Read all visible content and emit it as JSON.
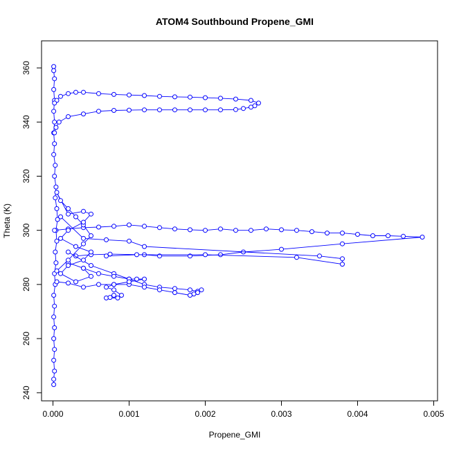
{
  "chart_data": {
    "type": "scatter",
    "title": "ATOM4 Southbound Propene_GMI",
    "xlabel": "Propene_GMI",
    "ylabel": "Theta (K)",
    "xlim": [
      -0.00015,
      0.00505
    ],
    "ylim": [
      237,
      370
    ],
    "x_ticks": [
      0,
      0.001,
      0.002,
      0.003,
      0.004,
      0.005
    ],
    "x_tick_labels": [
      "0.000",
      "0.001",
      "0.002",
      "0.003",
      "0.004",
      "0.005"
    ],
    "y_ticks": [
      240,
      260,
      280,
      300,
      320,
      340,
      360
    ],
    "y_tick_labels": [
      "240",
      "260",
      "280",
      "300",
      "320",
      "340",
      "360"
    ],
    "grid": false,
    "legend": "none",
    "marker": "open-circle",
    "line_style": "connected",
    "colors": {
      "series": "#0000ff",
      "axis": "#000000"
    },
    "series": [
      {
        "points": [
          [
            1e-05,
            243
          ],
          [
            1e-05,
            245
          ],
          [
            2e-05,
            248
          ],
          [
            1e-05,
            252
          ],
          [
            2e-05,
            256
          ],
          [
            1e-05,
            260
          ],
          [
            2e-05,
            264
          ],
          [
            1e-05,
            268
          ],
          [
            2e-05,
            272
          ],
          [
            1e-05,
            276
          ],
          [
            3e-05,
            280
          ],
          [
            2e-05,
            284
          ],
          [
            4e-05,
            288
          ],
          [
            3e-05,
            292
          ],
          [
            5e-05,
            296
          ],
          [
            4e-05,
            300
          ],
          [
            6e-05,
            304
          ],
          [
            5e-05,
            308
          ],
          [
            3e-05,
            312
          ],
          [
            4e-05,
            316
          ],
          [
            2e-05,
            320
          ],
          [
            3e-05,
            324
          ],
          [
            1e-05,
            328
          ],
          [
            2e-05,
            332
          ],
          [
            1e-05,
            336
          ],
          [
            2e-05,
            340
          ],
          [
            1e-05,
            344
          ],
          [
            2e-05,
            348
          ],
          [
            1e-05,
            352
          ],
          [
            2e-05,
            356
          ],
          [
            1e-05,
            359
          ],
          [
            1e-05,
            360.5
          ]
        ]
      },
      {
        "points": [
          [
            2e-05,
            336
          ],
          [
            4e-05,
            338
          ],
          [
            8e-05,
            340
          ],
          [
            0.0002,
            342
          ],
          [
            0.0004,
            343
          ],
          [
            0.0006,
            344
          ],
          [
            0.0008,
            344.3
          ],
          [
            0.001,
            344.4
          ],
          [
            0.0012,
            344.5
          ],
          [
            0.0014,
            344.5
          ],
          [
            0.0016,
            344.5
          ],
          [
            0.0018,
            344.5
          ],
          [
            0.002,
            344.5
          ],
          [
            0.0022,
            344.5
          ],
          [
            0.0024,
            344.6
          ],
          [
            0.0025,
            345
          ],
          [
            0.0026,
            345.5
          ],
          [
            0.00265,
            346
          ],
          [
            0.0027,
            347
          ],
          [
            0.0026,
            348
          ],
          [
            0.0024,
            348.5
          ],
          [
            0.0022,
            348.8
          ],
          [
            0.002,
            349
          ],
          [
            0.0018,
            349.2
          ],
          [
            0.0016,
            349.3
          ],
          [
            0.0014,
            349.5
          ],
          [
            0.0012,
            349.8
          ],
          [
            0.001,
            350
          ],
          [
            0.0008,
            350.2
          ],
          [
            0.0006,
            350.5
          ],
          [
            0.0004,
            351
          ],
          [
            0.0003,
            351
          ],
          [
            0.0002,
            350.5
          ],
          [
            0.0001,
            349.5
          ],
          [
            5e-05,
            348
          ],
          [
            2e-05,
            347
          ]
        ]
      },
      {
        "points": [
          [
            2e-05,
            300
          ],
          [
            0.0002,
            300.5
          ],
          [
            0.0004,
            301
          ],
          [
            0.0006,
            301.2
          ],
          [
            0.0008,
            301.5
          ],
          [
            0.001,
            302
          ],
          [
            0.0012,
            301.5
          ],
          [
            0.0014,
            301
          ],
          [
            0.0016,
            300.5
          ],
          [
            0.0018,
            300.2
          ],
          [
            0.002,
            300
          ],
          [
            0.0022,
            300.5
          ],
          [
            0.0024,
            300
          ],
          [
            0.0026,
            300
          ],
          [
            0.0028,
            300.5
          ],
          [
            0.003,
            300.2
          ],
          [
            0.0032,
            300
          ],
          [
            0.0034,
            299.5
          ],
          [
            0.0036,
            299
          ],
          [
            0.0038,
            299
          ],
          [
            0.004,
            298.5
          ],
          [
            0.0042,
            298
          ],
          [
            0.0044,
            298
          ],
          [
            0.0046,
            297.8
          ],
          [
            0.00485,
            297.5
          ],
          [
            0.0038,
            295
          ],
          [
            0.003,
            293
          ],
          [
            0.0025,
            292
          ],
          [
            0.0022,
            291
          ],
          [
            0.0018,
            290.5
          ],
          [
            0.0014,
            290.5
          ],
          [
            0.0012,
            291
          ],
          [
            0.00075,
            291.2
          ],
          [
            0.0005,
            291
          ],
          [
            0.0003,
            290.5
          ]
        ]
      },
      {
        "points": [
          [
            0.0001,
            305
          ],
          [
            0.0004,
            297
          ],
          [
            0.0007,
            296.5
          ],
          [
            0.001,
            296
          ],
          [
            0.0012,
            294
          ],
          [
            0.0035,
            290.5
          ],
          [
            0.0038,
            289.5
          ],
          [
            0.0038,
            287.5
          ],
          [
            0.0032,
            290
          ],
          [
            0.002,
            291
          ],
          [
            0.0011,
            291
          ],
          [
            0.0007,
            290.5
          ]
        ]
      },
      {
        "points": [
          [
            0.0002,
            292
          ],
          [
            0.0005,
            287
          ],
          [
            0.0008,
            284
          ],
          [
            0.001,
            282
          ],
          [
            0.0012,
            280
          ],
          [
            0.0014,
            279
          ],
          [
            0.0016,
            278.5
          ],
          [
            0.0018,
            278
          ],
          [
            0.0019,
            277.5
          ],
          [
            0.00195,
            278
          ],
          [
            0.0019,
            277
          ],
          [
            0.00185,
            276.5
          ],
          [
            0.0018,
            276
          ],
          [
            0.0016,
            277
          ],
          [
            0.0014,
            278
          ],
          [
            0.0012,
            279
          ],
          [
            0.001,
            280
          ],
          [
            0.0008,
            280
          ],
          [
            0.0006,
            280
          ],
          [
            0.0004,
            279
          ],
          [
            0.0002,
            280.5
          ],
          [
            5e-05,
            281
          ]
        ]
      },
      {
        "points": [
          [
            0.0002,
            288
          ],
          [
            0.0004,
            286
          ],
          [
            0.0006,
            284
          ],
          [
            0.0008,
            283
          ],
          [
            0.001,
            282
          ],
          [
            0.0011,
            282
          ],
          [
            0.0012,
            282
          ],
          [
            0.001,
            281
          ],
          [
            0.0008,
            280
          ],
          [
            0.0007,
            279
          ],
          [
            0.0008,
            278
          ],
          [
            0.0009,
            276
          ],
          [
            0.00085,
            275
          ],
          [
            0.0007,
            275
          ],
          [
            0.00075,
            275.2
          ],
          [
            0.0008,
            276
          ]
        ]
      },
      {
        "points": [
          [
            5e-05,
            285
          ],
          [
            0.0002,
            289
          ],
          [
            0.0004,
            295
          ],
          [
            0.0005,
            298
          ],
          [
            0.0004,
            302
          ],
          [
            0.0003,
            305
          ],
          [
            0.0002,
            308
          ],
          [
            0.0001,
            311
          ],
          [
            5e-05,
            314
          ],
          [
            0.0002,
            306
          ],
          [
            0.0004,
            307
          ],
          [
            0.0005,
            306
          ],
          [
            0.0004,
            303
          ],
          [
            0.0002,
            300
          ],
          [
            0.0001,
            297
          ],
          [
            0.0003,
            294
          ],
          [
            0.0005,
            292
          ],
          [
            0.0004,
            289
          ],
          [
            0.0002,
            287
          ],
          [
            0.0001,
            284
          ],
          [
            0.0003,
            281
          ],
          [
            0.0005,
            283
          ],
          [
            0.0004,
            286
          ]
        ]
      }
    ]
  }
}
